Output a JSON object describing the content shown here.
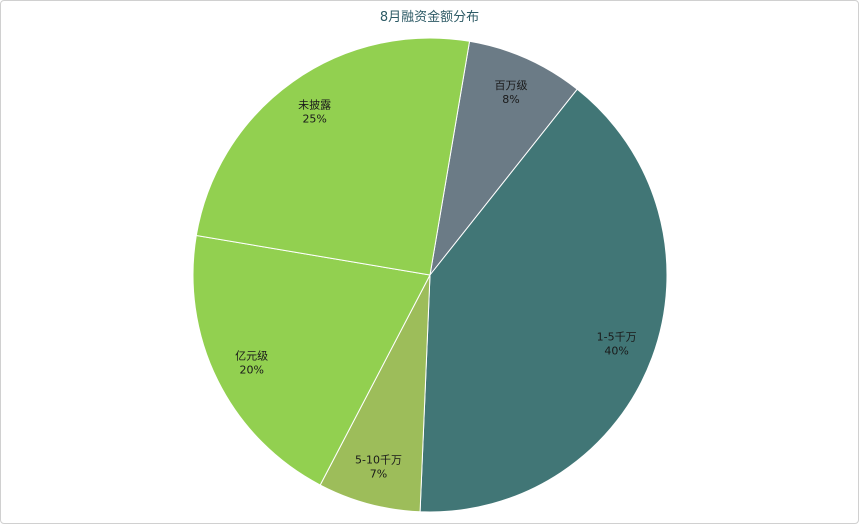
{
  "chart_data": {
    "type": "pie",
    "title": "8月融资金额分布",
    "start_angle_deg": 9.6,
    "direction": "clockwise",
    "slices": [
      {
        "label": "百万级",
        "value": 8,
        "pct_label": "8%",
        "color": "#6b7b86"
      },
      {
        "label": "1-5千万",
        "value": 40,
        "pct_label": "40%",
        "color": "#417676"
      },
      {
        "label": "5-10千万",
        "value": 7,
        "pct_label": "7%",
        "color": "#9dbd5a"
      },
      {
        "label": "亿元级",
        "value": 20,
        "pct_label": "20%",
        "color": "#92d050"
      },
      {
        "label": "未披露",
        "value": 25,
        "pct_label": "25%",
        "color": "#92d050"
      }
    ]
  }
}
